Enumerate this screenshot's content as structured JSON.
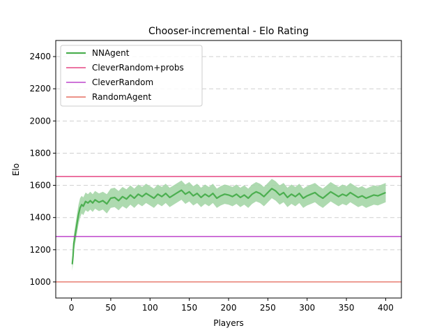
{
  "chart_data": {
    "type": "line",
    "title": "Chooser-incremental - Elo Rating",
    "xlabel": "Players",
    "ylabel": "Elo",
    "xlim": [
      -20,
      420
    ],
    "ylim": [
      900,
      2500
    ],
    "xticks": [
      0,
      50,
      100,
      150,
      200,
      250,
      300,
      350,
      400
    ],
    "yticks": [
      1000,
      1200,
      1400,
      1600,
      1800,
      2000,
      2200,
      2400
    ],
    "grid": "horizontal dashed",
    "legend_position": "top-left",
    "series": [
      {
        "name": "NNAgent",
        "color": "#4caf50",
        "band_color": "#a5d6a7",
        "x": [
          1,
          2,
          3,
          5,
          7,
          9,
          11,
          13,
          15,
          18,
          21,
          24,
          27,
          30,
          35,
          40,
          45,
          50,
          55,
          60,
          65,
          70,
          75,
          80,
          85,
          90,
          95,
          100,
          105,
          110,
          115,
          120,
          125,
          130,
          135,
          140,
          145,
          150,
          155,
          160,
          165,
          170,
          175,
          180,
          185,
          190,
          195,
          200,
          205,
          210,
          215,
          220,
          225,
          230,
          235,
          240,
          245,
          250,
          255,
          260,
          265,
          270,
          275,
          280,
          285,
          290,
          295,
          300,
          305,
          310,
          315,
          320,
          325,
          330,
          335,
          340,
          345,
          350,
          355,
          360,
          365,
          370,
          375,
          380,
          385,
          390,
          395,
          400
        ],
        "y": [
          1110,
          1160,
          1240,
          1300,
          1360,
          1420,
          1460,
          1480,
          1470,
          1500,
          1490,
          1505,
          1490,
          1510,
          1495,
          1505,
          1485,
          1520,
          1525,
          1505,
          1530,
          1515,
          1540,
          1520,
          1545,
          1530,
          1550,
          1535,
          1520,
          1545,
          1530,
          1550,
          1525,
          1540,
          1555,
          1570,
          1545,
          1560,
          1535,
          1550,
          1525,
          1545,
          1530,
          1550,
          1520,
          1535,
          1545,
          1540,
          1530,
          1545,
          1525,
          1540,
          1520,
          1545,
          1560,
          1550,
          1530,
          1555,
          1580,
          1565,
          1540,
          1555,
          1525,
          1545,
          1530,
          1550,
          1520,
          1535,
          1545,
          1555,
          1535,
          1520,
          1540,
          1560,
          1545,
          1530,
          1545,
          1535,
          1555,
          1540,
          1525,
          1535,
          1520,
          1530,
          1540,
          1535,
          1545,
          1555
        ],
        "spread": [
          40,
          45,
          50,
          55,
          60,
          60,
          60,
          55,
          55,
          55,
          55,
          55,
          55,
          55,
          55,
          55,
          60,
          60,
          60,
          60,
          60,
          60,
          60,
          60,
          60,
          60,
          60,
          60,
          60,
          60,
          60,
          60,
          60,
          60,
          60,
          60,
          60,
          60,
          60,
          60,
          60,
          60,
          60,
          60,
          60,
          60,
          60,
          60,
          60,
          60,
          60,
          60,
          60,
          60,
          60,
          60,
          60,
          60,
          60,
          60,
          60,
          60,
          60,
          60,
          60,
          60,
          60,
          60,
          60,
          60,
          60,
          60,
          60,
          60,
          60,
          60,
          60,
          60,
          60,
          60,
          60,
          60,
          60,
          60,
          60,
          60,
          60,
          60
        ]
      },
      {
        "name": "CleverRandom+probs",
        "color": "#e0206a",
        "y_const": 1655
      },
      {
        "name": "CleverRandom",
        "color": "#b020c0",
        "y_const": 1282
      },
      {
        "name": "RandomAgent",
        "color": "#e05040",
        "y_const": 1000
      }
    ]
  }
}
